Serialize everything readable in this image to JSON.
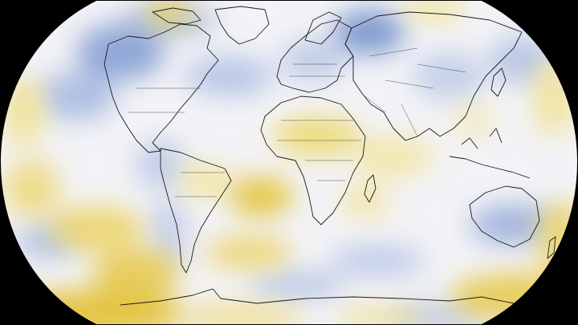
{
  "map": {
    "projection": "Robinson",
    "background_color": "#000000",
    "colors": {
      "neutral": "#f4f4f8",
      "cool": "#8fa7d6",
      "cool_strong": "#6d8cc9",
      "warm": "#efe08a",
      "warm_strong": "#e3c23a"
    }
  }
}
